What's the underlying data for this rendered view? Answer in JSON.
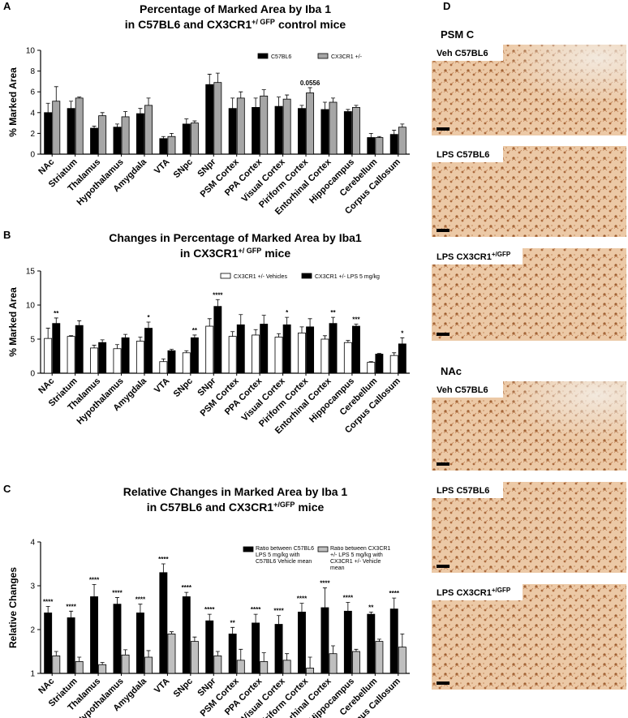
{
  "chart_data": [
    {
      "type": "bar",
      "panel": "A",
      "title": "Percentage of Marked Area by Iba 1",
      "subtitle_parts": [
        "in C57BL6 and CX3CR1",
        "+/ GFP",
        "control mice"
      ],
      "y_label": "% Marked Area",
      "categories": [
        "NAc",
        "Striatum",
        "Thalamus",
        "Hypothalamus",
        "Amygdala",
        "VTA",
        "SNpc",
        "SNpr",
        "PSM Cortex",
        "PPA Cortex",
        "Visual Cortex",
        "Piriform Cortex",
        "Entorhinal Cortex",
        "Hippocampus",
        "Cerebellum",
        "Corpus Callosum"
      ],
      "ylim": [
        0,
        10
      ],
      "yticks": [
        0,
        2,
        4,
        6,
        8,
        10
      ],
      "series": [
        {
          "name": "C57BL6",
          "color": "#000000",
          "values": [
            4.0,
            4.4,
            2.5,
            2.6,
            3.9,
            1.5,
            2.9,
            6.7,
            4.4,
            4.5,
            4.6,
            4.4,
            4.3,
            4.1,
            1.6,
            1.9
          ],
          "errors": [
            0.9,
            0.7,
            0.2,
            0.3,
            0.5,
            0.2,
            0.5,
            1.0,
            1.0,
            0.9,
            0.9,
            0.3,
            0.7,
            0.2,
            0.4,
            0.4
          ]
        },
        {
          "name": "CX3CR1 +/-",
          "color": "#a6a6a6",
          "values": [
            5.1,
            5.4,
            3.7,
            3.6,
            4.7,
            1.7,
            3.0,
            6.9,
            5.4,
            5.6,
            5.3,
            5.9,
            5.0,
            4.5,
            1.6,
            2.6
          ],
          "errors": [
            1.4,
            0.1,
            0.3,
            0.5,
            0.7,
            0.3,
            0.2,
            0.9,
            0.6,
            0.6,
            0.4,
            0.5,
            0.4,
            0.2,
            0.1,
            0.3
          ],
          "significance": [
            null,
            null,
            null,
            null,
            null,
            null,
            null,
            null,
            null,
            null,
            null,
            "0.0556",
            null,
            null,
            null,
            null
          ]
        }
      ]
    },
    {
      "type": "bar",
      "panel": "B",
      "title": "Changes in Percentage of Marked Area by Iba1",
      "subtitle_parts": [
        "in CX3CR1",
        "+/ GFP",
        "mice"
      ],
      "y_label": "% Marked Area",
      "categories": [
        "NAc",
        "Striatum",
        "Thalamus",
        "Hypothalamus",
        "Amygdala",
        "VTA",
        "SNpc",
        "SNpr",
        "PSM Cortex",
        "PPA Cortex",
        "Visual Cortex",
        "Piriform Cortex",
        "Entorhinal Cortex",
        "Hippocampus",
        "Cerebellum",
        "Corpus Callosum"
      ],
      "ylim": [
        0,
        15
      ],
      "yticks": [
        0,
        5,
        10,
        15
      ],
      "series": [
        {
          "name": "CX3CR1 +/- Vehicles",
          "color": "#ffffff",
          "values": [
            5.1,
            5.4,
            3.7,
            3.6,
            4.7,
            1.7,
            3.0,
            6.9,
            5.4,
            5.6,
            5.3,
            5.9,
            5.0,
            4.5,
            1.6,
            2.6
          ],
          "errors": [
            1.5,
            0.1,
            0.4,
            0.6,
            0.6,
            0.4,
            0.3,
            1.1,
            0.7,
            0.8,
            0.5,
            0.9,
            0.5,
            0.3,
            0.1,
            0.4
          ]
        },
        {
          "name": "CX3CR1 +/- LPS 5 mg/kg",
          "color": "#000000",
          "values": [
            7.3,
            7.0,
            4.5,
            5.2,
            6.6,
            3.3,
            5.2,
            9.8,
            7.1,
            7.2,
            7.1,
            6.8,
            7.3,
            6.9,
            2.8,
            4.3
          ],
          "errors": [
            0.8,
            0.7,
            0.4,
            0.5,
            0.9,
            0.2,
            0.4,
            1.0,
            1.5,
            1.3,
            1.1,
            1.2,
            0.9,
            0.3,
            0.1,
            0.9
          ],
          "significance": [
            "**",
            null,
            null,
            null,
            "*",
            null,
            "**",
            "****",
            null,
            null,
            "*",
            null,
            "**",
            "***",
            null,
            "*"
          ]
        }
      ]
    },
    {
      "type": "bar",
      "panel": "C",
      "title": "Relative Changes in Marked Area by Iba 1",
      "subtitle_parts": [
        "in C57BL6 and CX3CR1",
        "+/GFP",
        "mice"
      ],
      "y_label": "Relative Changes",
      "categories": [
        "NAc",
        "Striatum",
        "Thalamus",
        "Hypothalamus",
        "Amygdala",
        "VTA",
        "SNpc",
        "SNpr",
        "PSM Cortex",
        "PPA Cortex",
        "Visual Cortex",
        "Piriform Cortex",
        "Entorhinal Cortex",
        "Hippocampus",
        "Cerebellum",
        "Corpus Callosum"
      ],
      "ylim": [
        1,
        4
      ],
      "yticks": [
        1,
        2,
        3,
        4
      ],
      "series": [
        {
          "name": "Ratio between C57BL6 LPS 5 mg/kg with C57BL6 Vehicle mean",
          "color": "#000000",
          "values": [
            2.38,
            2.27,
            2.75,
            2.58,
            2.38,
            3.3,
            2.75,
            2.2,
            1.9,
            2.15,
            2.12,
            2.4,
            2.5,
            2.42,
            2.35,
            2.47
          ],
          "errors": [
            0.15,
            0.15,
            0.28,
            0.15,
            0.2,
            0.2,
            0.1,
            0.15,
            0.15,
            0.2,
            0.2,
            0.2,
            0.45,
            0.2,
            0.05,
            0.25
          ],
          "significance": [
            "****",
            "****",
            "****",
            "****",
            "****",
            "****",
            "****",
            "****",
            "**",
            "****",
            "****",
            "****",
            "****",
            "****",
            "**",
            "****"
          ]
        },
        {
          "name": "Ratio between CX3CR1 +/- LPS 5 mg/kg with CX3CR1 +/- Vehicle mean",
          "color": "#bfbfbf",
          "values": [
            1.4,
            1.27,
            1.2,
            1.42,
            1.37,
            1.9,
            1.73,
            1.4,
            1.3,
            1.27,
            1.3,
            1.12,
            1.45,
            1.5,
            1.73,
            1.6
          ],
          "errors": [
            0.1,
            0.1,
            0.05,
            0.12,
            0.15,
            0.05,
            0.1,
            0.1,
            0.25,
            0.2,
            0.15,
            0.25,
            0.18,
            0.05,
            0.05,
            0.3
          ]
        }
      ]
    }
  ],
  "image_panel": {
    "panel": "D",
    "sections": [
      {
        "title": "PSM C",
        "images": [
          [
            "Veh C57BL6"
          ],
          [
            "LPS C57BL6"
          ],
          [
            "LPS CX3CR1",
            "+/GFP"
          ]
        ]
      },
      {
        "title": "NAc",
        "images": [
          [
            "Veh C57BL6"
          ],
          [
            "LPS C57BL6"
          ],
          [
            "LPS CX3CR1",
            "+/GFP"
          ]
        ]
      }
    ]
  }
}
